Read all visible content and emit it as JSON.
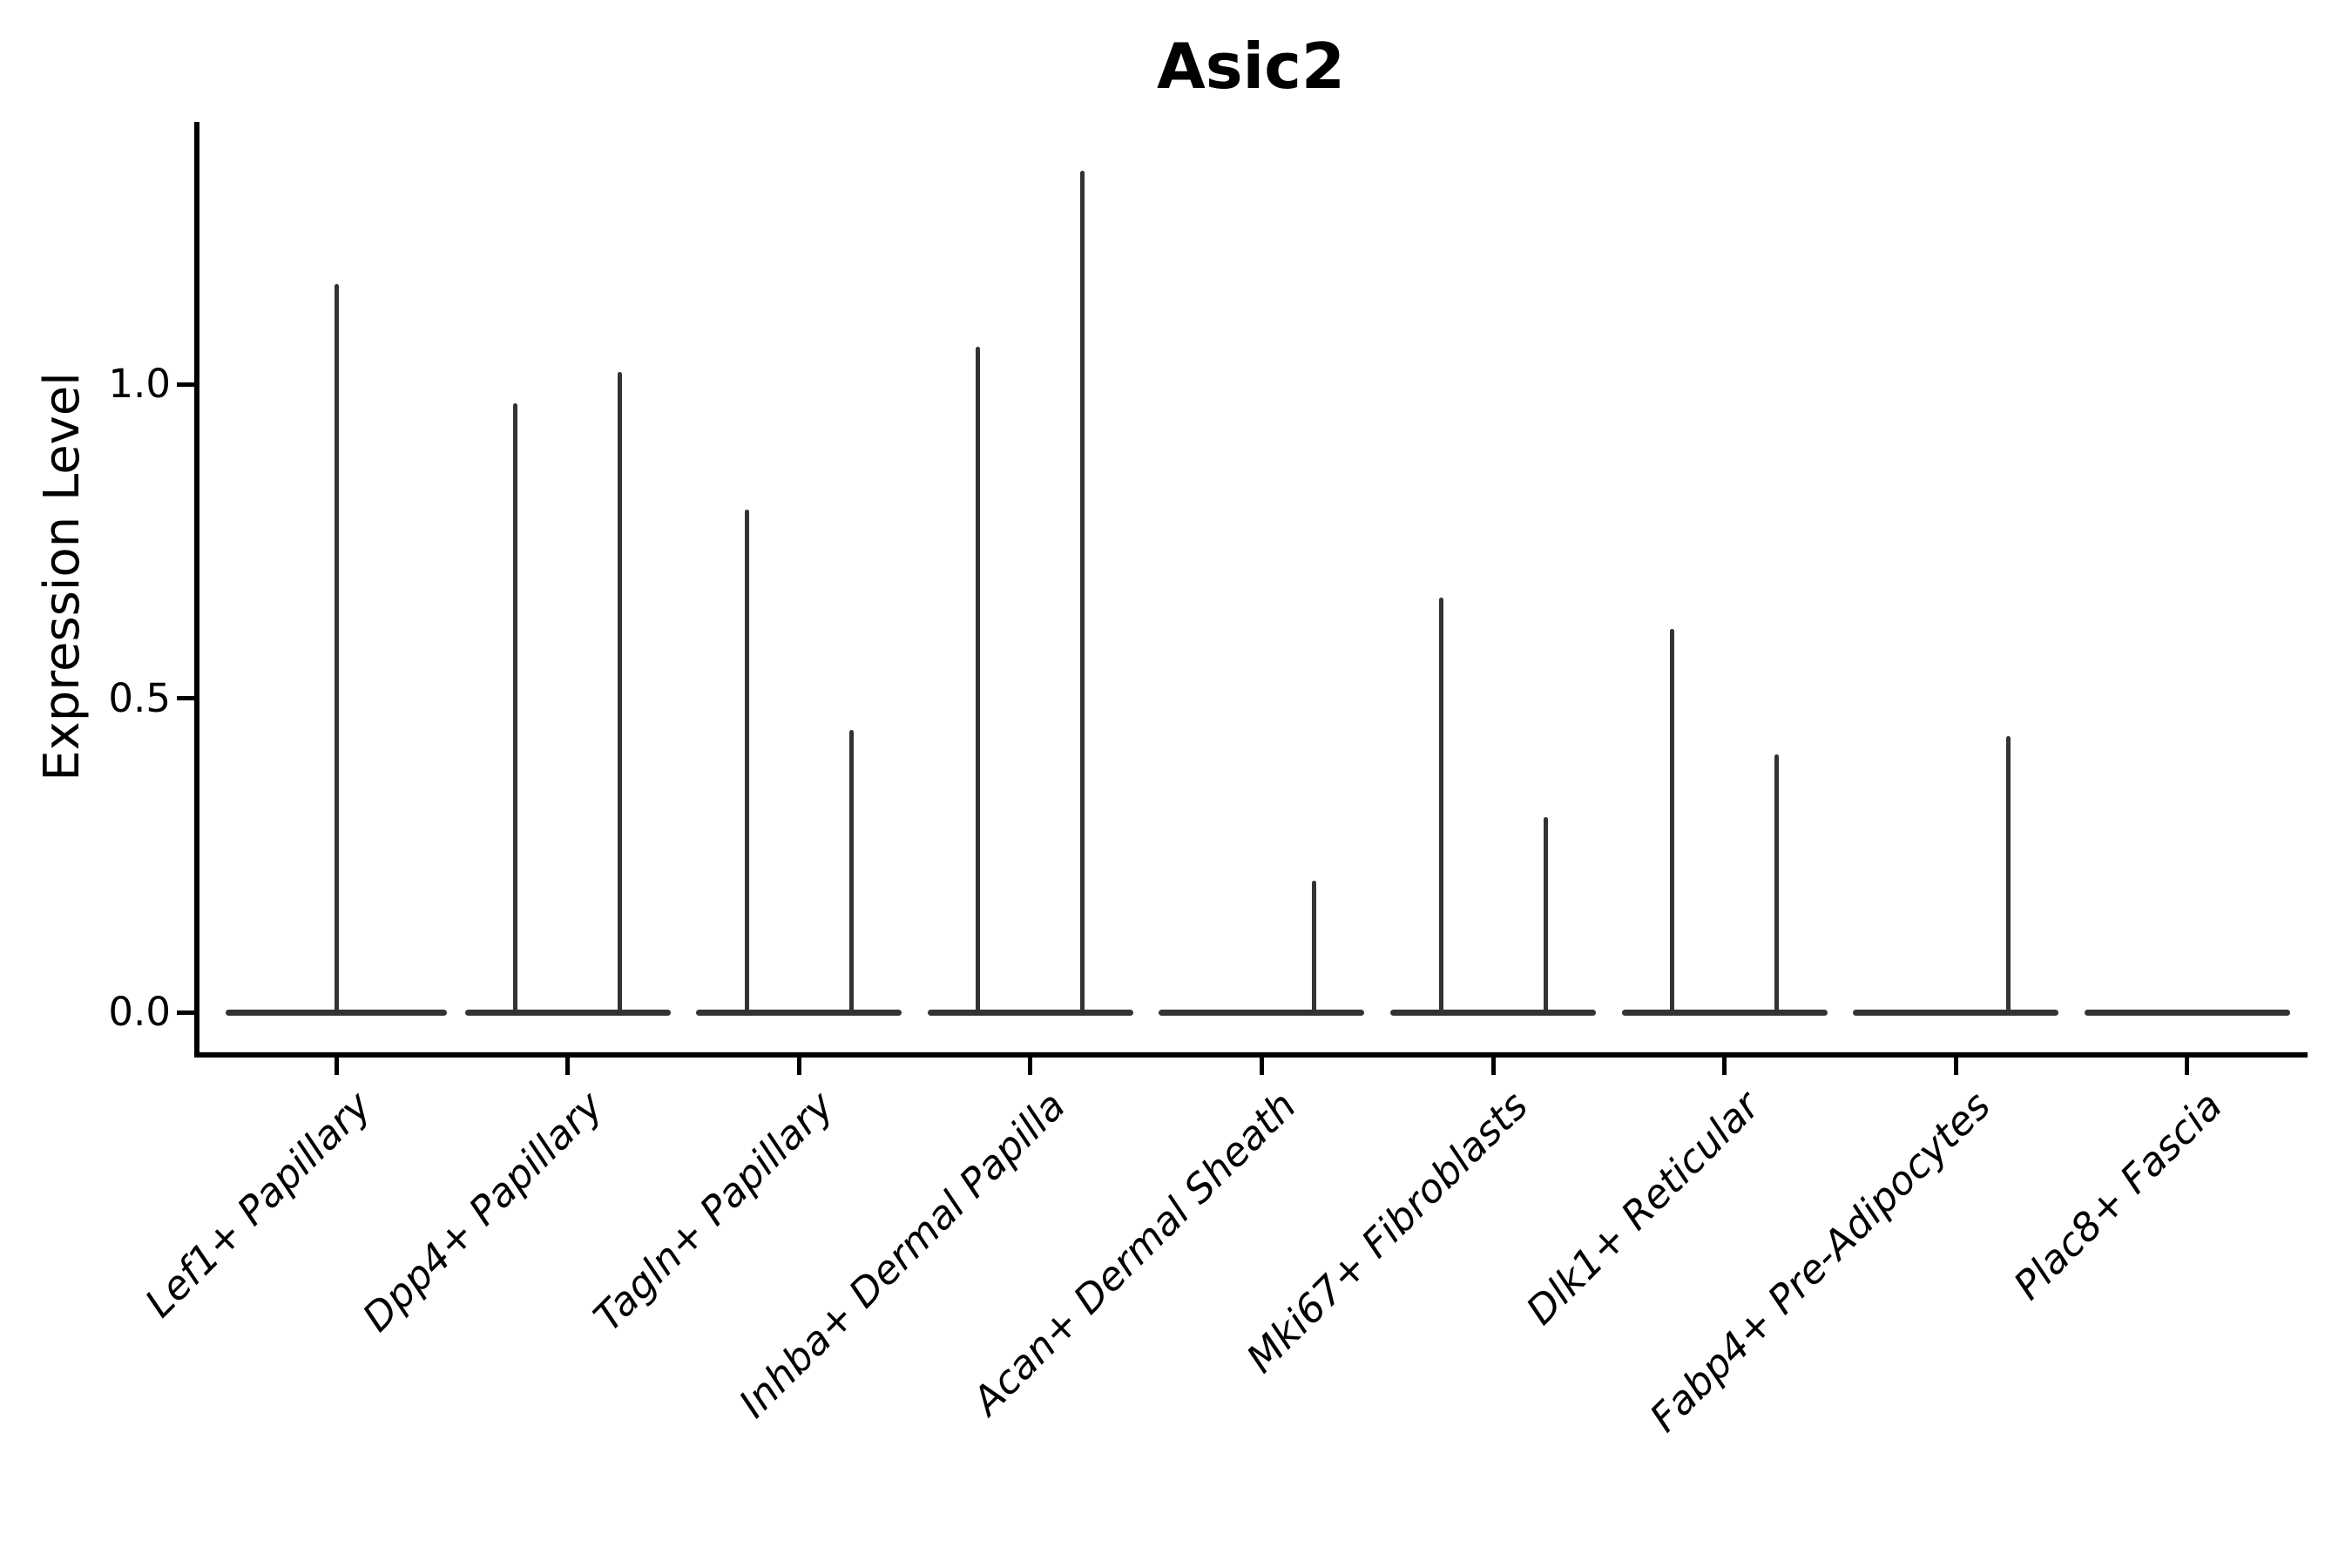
{
  "chart_data": {
    "type": "violin",
    "title": "Asic2",
    "ylabel": "Expression Level",
    "xlabel": "",
    "ylim": [
      -0.06,
      1.42
    ],
    "grid": false,
    "legend": "none",
    "y_ticks": [
      {
        "label": "0.0",
        "value": 0.0
      },
      {
        "label": "0.5",
        "value": 0.5
      },
      {
        "label": "1.0",
        "value": 1.0
      }
    ],
    "categories": [
      "Lef1+ Papillary",
      "Dpp4+ Papillary",
      "Tagln+ Papillary",
      "Inhba+ Dermal Papilla",
      "Acan+ Dermal Sheath",
      "Mki67+ Fibroblasts",
      "Dlk1+ Reticular",
      "Fabp4+ Pre-Adipocytes",
      "Plac8+ Fascia"
    ],
    "violins": [
      {
        "category": "Lef1+ Papillary",
        "groups": [
          {
            "side": "center",
            "max": 1.16
          }
        ]
      },
      {
        "category": "Dpp4+ Papillary",
        "groups": [
          {
            "side": "left",
            "max": 0.97
          },
          {
            "side": "right",
            "max": 1.02
          }
        ]
      },
      {
        "category": "Tagln+ Papillary",
        "groups": [
          {
            "side": "left",
            "max": 0.8
          },
          {
            "side": "right",
            "max": 0.45
          }
        ]
      },
      {
        "category": "Inhba+ Dermal Papilla",
        "groups": [
          {
            "side": "left",
            "max": 1.06
          },
          {
            "side": "right",
            "max": 1.34
          }
        ]
      },
      {
        "category": "Acan+ Dermal Sheath",
        "groups": [
          {
            "side": "left",
            "max": 0.0
          },
          {
            "side": "right",
            "max": 0.21
          }
        ]
      },
      {
        "category": "Mki67+ Fibroblasts",
        "groups": [
          {
            "side": "left",
            "max": 0.66
          },
          {
            "side": "right",
            "max": 0.31
          }
        ]
      },
      {
        "category": "Dlk1+ Reticular",
        "groups": [
          {
            "side": "left",
            "max": 0.61
          },
          {
            "side": "right",
            "max": 0.41
          }
        ]
      },
      {
        "category": "Fabp4+ Pre-Adipocytes",
        "groups": [
          {
            "side": "left",
            "max": 0.0
          },
          {
            "side": "right",
            "max": 0.44
          }
        ]
      },
      {
        "category": "Plac8+ Fascia",
        "groups": [
          {
            "side": "left",
            "max": 0.0
          },
          {
            "side": "right",
            "max": 0.0
          }
        ]
      }
    ],
    "colors": {
      "violin": "#333333",
      "axis": "#000000",
      "text": "#000000",
      "background": "#ffffff"
    }
  }
}
